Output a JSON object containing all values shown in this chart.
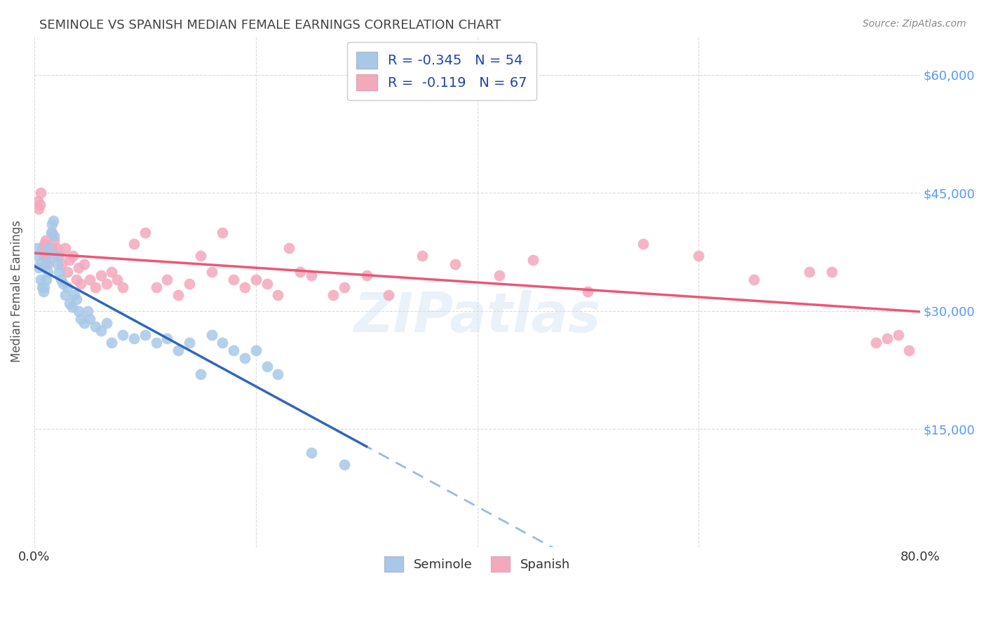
{
  "title": "SEMINOLE VS SPANISH MEDIAN FEMALE EARNINGS CORRELATION CHART",
  "source": "Source: ZipAtlas.com",
  "ylabel": "Median Female Earnings",
  "xlim": [
    0.0,
    0.8
  ],
  "ylim": [
    0,
    65000
  ],
  "yticks": [
    0,
    15000,
    30000,
    45000,
    60000
  ],
  "ytick_labels": [
    "",
    "$15,000",
    "$30,000",
    "$45,000",
    "$60,000"
  ],
  "xticks": [
    0.0,
    0.2,
    0.4,
    0.6,
    0.8
  ],
  "xtick_labels": [
    "0.0%",
    "",
    "",
    "",
    "80.0%"
  ],
  "seminole_R": -0.345,
  "seminole_N": 54,
  "spanish_R": -0.119,
  "spanish_N": 67,
  "seminole_color": "#a8c8e8",
  "spanish_color": "#f4a8bc",
  "trend_seminole_color": "#3366bb",
  "trend_spanish_color": "#ee5577",
  "trend_seminole_dash_color": "#99bbdd",
  "background_color": "#ffffff",
  "grid_color": "#cccccc",
  "title_color": "#444444",
  "axis_label_color": "#555555",
  "right_tick_color": "#5599ff",
  "legend_text_color": "#2244aa",
  "seminole_x": [
    0.002,
    0.003,
    0.004,
    0.005,
    0.006,
    0.007,
    0.008,
    0.009,
    0.01,
    0.011,
    0.012,
    0.013,
    0.014,
    0.015,
    0.016,
    0.017,
    0.018,
    0.02,
    0.021,
    0.022,
    0.024,
    0.026,
    0.028,
    0.03,
    0.032,
    0.034,
    0.036,
    0.038,
    0.04,
    0.042,
    0.045,
    0.048,
    0.05,
    0.055,
    0.06,
    0.065,
    0.07,
    0.08,
    0.09,
    0.1,
    0.11,
    0.12,
    0.13,
    0.14,
    0.15,
    0.16,
    0.17,
    0.18,
    0.19,
    0.2,
    0.21,
    0.22,
    0.25,
    0.28
  ],
  "seminole_y": [
    38000,
    37000,
    35500,
    36000,
    34000,
    33000,
    32500,
    33000,
    36000,
    34000,
    35000,
    38000,
    36500,
    40000,
    41000,
    41500,
    39500,
    37000,
    36000,
    35000,
    34000,
    33500,
    32000,
    33000,
    31000,
    30500,
    32000,
    31500,
    30000,
    29000,
    28500,
    30000,
    29000,
    28000,
    27500,
    28500,
    26000,
    27000,
    26500,
    27000,
    26000,
    26500,
    25000,
    26000,
    22000,
    27000,
    26000,
    25000,
    24000,
    25000,
    23000,
    22000,
    12000,
    10500
  ],
  "spanish_x": [
    0.003,
    0.004,
    0.005,
    0.006,
    0.007,
    0.008,
    0.009,
    0.01,
    0.011,
    0.012,
    0.013,
    0.015,
    0.016,
    0.018,
    0.02,
    0.022,
    0.025,
    0.028,
    0.03,
    0.032,
    0.035,
    0.038,
    0.04,
    0.042,
    0.045,
    0.05,
    0.055,
    0.06,
    0.065,
    0.07,
    0.075,
    0.08,
    0.09,
    0.1,
    0.11,
    0.12,
    0.13,
    0.14,
    0.15,
    0.16,
    0.17,
    0.18,
    0.19,
    0.2,
    0.21,
    0.22,
    0.23,
    0.24,
    0.25,
    0.27,
    0.28,
    0.3,
    0.32,
    0.35,
    0.38,
    0.42,
    0.45,
    0.5,
    0.55,
    0.6,
    0.65,
    0.7,
    0.72,
    0.76,
    0.77,
    0.78,
    0.79
  ],
  "spanish_y": [
    44000,
    43000,
    43500,
    45000,
    38000,
    37000,
    38500,
    39000,
    37000,
    36000,
    37500,
    38000,
    40000,
    39000,
    38000,
    37000,
    36000,
    38000,
    35000,
    36500,
    37000,
    34000,
    35500,
    33500,
    36000,
    34000,
    33000,
    34500,
    33500,
    35000,
    34000,
    33000,
    38500,
    40000,
    33000,
    34000,
    32000,
    33500,
    37000,
    35000,
    40000,
    34000,
    33000,
    34000,
    33500,
    32000,
    38000,
    35000,
    34500,
    32000,
    33000,
    34500,
    32000,
    37000,
    36000,
    34500,
    36500,
    32500,
    38500,
    37000,
    34000,
    35000,
    35000,
    26000,
    26500,
    27000,
    25000
  ]
}
